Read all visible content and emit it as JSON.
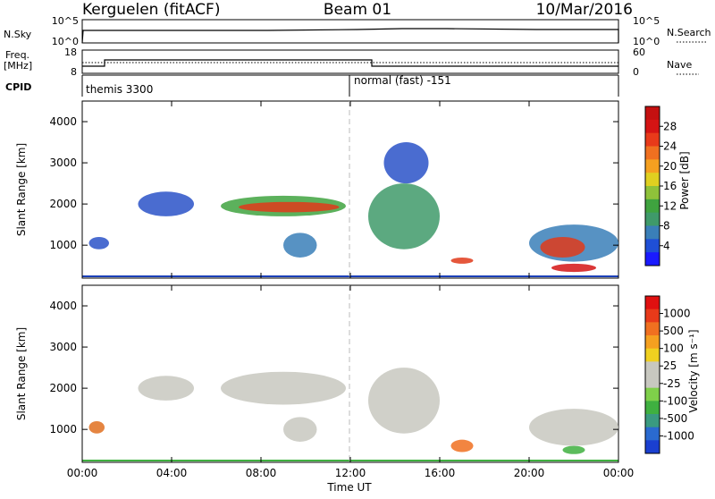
{
  "header": {
    "station": "Kerguelen (fitACF)",
    "beam": "Beam 01",
    "date": "10/Mar/2016"
  },
  "strip": {
    "nsky_label": "N.Sky",
    "nsky_ticks": [
      "10^5",
      "10^0"
    ],
    "nsearch_label": "N.Search",
    "nsearch_ticks": [
      "10^5",
      "10^0"
    ],
    "freq_label_1": "Freq.",
    "freq_label_2": "[MHz]",
    "freq_ticks": [
      "18",
      "8"
    ],
    "nave_label": "Nave",
    "nave_ticks": [
      "60",
      "0"
    ],
    "cpid_label": "CPID",
    "cpid_1": "themis 3300",
    "cpid_2": "normal (fast) -151"
  },
  "chart_data": [
    {
      "type": "heatmap",
      "name": "power-panel",
      "ylabel": "Slant Range [km]",
      "yticks": [
        1000,
        2000,
        3000,
        4000
      ],
      "ylim": [
        200,
        4500
      ],
      "xlim_hours": [
        0,
        24
      ],
      "colorbar": {
        "label": "Power [dB]",
        "ticks": [
          "28",
          "24",
          "20",
          "16",
          "12",
          "8",
          "4"
        ],
        "colors": [
          "#1a1aff",
          "#1f4fd6",
          "#3a7fb8",
          "#3f9a6a",
          "#3fa33f",
          "#8fc23a",
          "#e0d020",
          "#f5a020",
          "#f07020",
          "#e83a1a",
          "#d51414",
          "#c41010"
        ]
      },
      "blobs": [
        {
          "t0": 0.3,
          "t1": 1.2,
          "r0": 900,
          "r1": 1200,
          "color": "#2a52c8"
        },
        {
          "t0": 2.5,
          "t1": 5.0,
          "r0": 1700,
          "r1": 2300,
          "color": "#2a52c8"
        },
        {
          "t0": 6.2,
          "t1": 11.8,
          "r0": 1700,
          "r1": 2200,
          "color": "#3fa33f"
        },
        {
          "t0": 7.0,
          "t1": 11.5,
          "r0": 1800,
          "r1": 2050,
          "color": "#e03a1a"
        },
        {
          "t0": 9.0,
          "t1": 10.5,
          "r0": 700,
          "r1": 1300,
          "color": "#3a7fb8"
        },
        {
          "t0": 12.8,
          "t1": 16.0,
          "r0": 900,
          "r1": 2500,
          "color": "#3f9a6a"
        },
        {
          "t0": 13.5,
          "t1": 15.5,
          "r0": 2500,
          "r1": 3500,
          "color": "#2a52c8"
        },
        {
          "t0": 16.5,
          "t1": 17.5,
          "r0": 550,
          "r1": 700,
          "color": "#e03a1a"
        },
        {
          "t0": 20.0,
          "t1": 24.0,
          "r0": 600,
          "r1": 1500,
          "color": "#3a7fb8"
        },
        {
          "t0": 20.5,
          "t1": 22.5,
          "r0": 700,
          "r1": 1200,
          "color": "#e03a1a"
        },
        {
          "t0": 21.0,
          "t1": 23.0,
          "r0": 350,
          "r1": 550,
          "color": "#d51414"
        }
      ]
    },
    {
      "type": "heatmap",
      "name": "velocity-panel",
      "ylabel": "Slant Range [km]",
      "yticks": [
        1000,
        2000,
        3000,
        4000
      ],
      "ylim": [
        200,
        4500
      ],
      "xlim_hours": [
        0,
        24
      ],
      "xticks": [
        "00:00",
        "04:00",
        "08:00",
        "12:00",
        "16:00",
        "20:00",
        "00:00"
      ],
      "xlabel": "Time UT",
      "colorbar": {
        "label": "Velocity [m s⁻¹]",
        "ticks": [
          "1000",
          "500",
          "100",
          "25",
          "-25",
          "-100",
          "-500",
          "-1000"
        ],
        "colors": [
          "#1a3fd0",
          "#2a6ad0",
          "#3a9a80",
          "#3fb040",
          "#7fd04a",
          "#c8c8c0",
          "#c8c8c0",
          "#f0d020",
          "#f5a020",
          "#f07020",
          "#e83a1a",
          "#e01010"
        ]
      },
      "blobs": [
        {
          "t0": 0.3,
          "t1": 1.0,
          "r0": 900,
          "r1": 1200,
          "color": "#e07020"
        },
        {
          "t0": 2.5,
          "t1": 5.0,
          "r0": 1700,
          "r1": 2300,
          "color": "#c8c8c0"
        },
        {
          "t0": 6.2,
          "t1": 11.8,
          "r0": 1600,
          "r1": 2400,
          "color": "#c8c8c0"
        },
        {
          "t0": 9.0,
          "t1": 10.5,
          "r0": 700,
          "r1": 1300,
          "color": "#c8c8c0"
        },
        {
          "t0": 12.8,
          "t1": 16.0,
          "r0": 900,
          "r1": 2500,
          "color": "#c8c8c0"
        },
        {
          "t0": 16.5,
          "t1": 17.5,
          "r0": 450,
          "r1": 750,
          "color": "#f07020"
        },
        {
          "t0": 20.0,
          "t1": 24.0,
          "r0": 600,
          "r1": 1500,
          "color": "#c8c8c0"
        },
        {
          "t0": 21.5,
          "t1": 22.5,
          "r0": 400,
          "r1": 600,
          "color": "#3fb040"
        }
      ]
    }
  ]
}
